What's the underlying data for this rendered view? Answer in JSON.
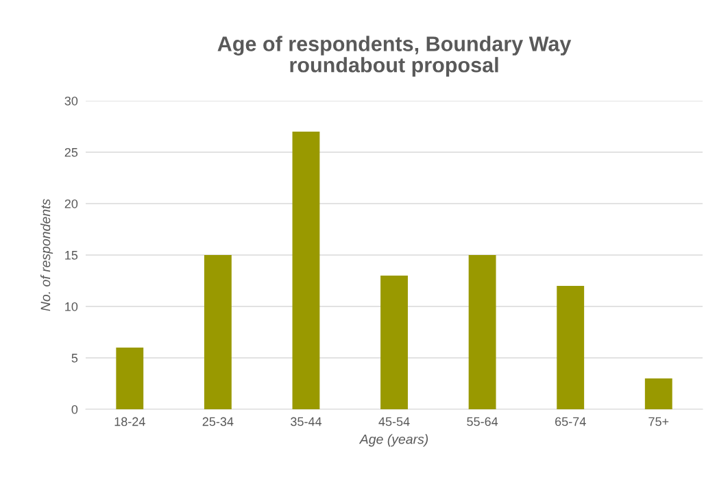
{
  "chart_data": {
    "type": "bar",
    "title": "Age of respondents, Boundary Way\nroundabout proposal",
    "xlabel": "Age (years)",
    "ylabel": "No. of respondents",
    "categories": [
      "18-24",
      "25-34",
      "35-44",
      "45-54",
      "55-64",
      "65-74",
      "75+"
    ],
    "series": [
      {
        "color": "#999900",
        "values": [
          6,
          15,
          27,
          13,
          15,
          12,
          3
        ]
      }
    ],
    "ylim": [
      0,
      30
    ],
    "yticks": [
      0,
      5,
      10,
      15,
      20,
      25,
      30
    ],
    "grid": "y",
    "legend": false
  }
}
